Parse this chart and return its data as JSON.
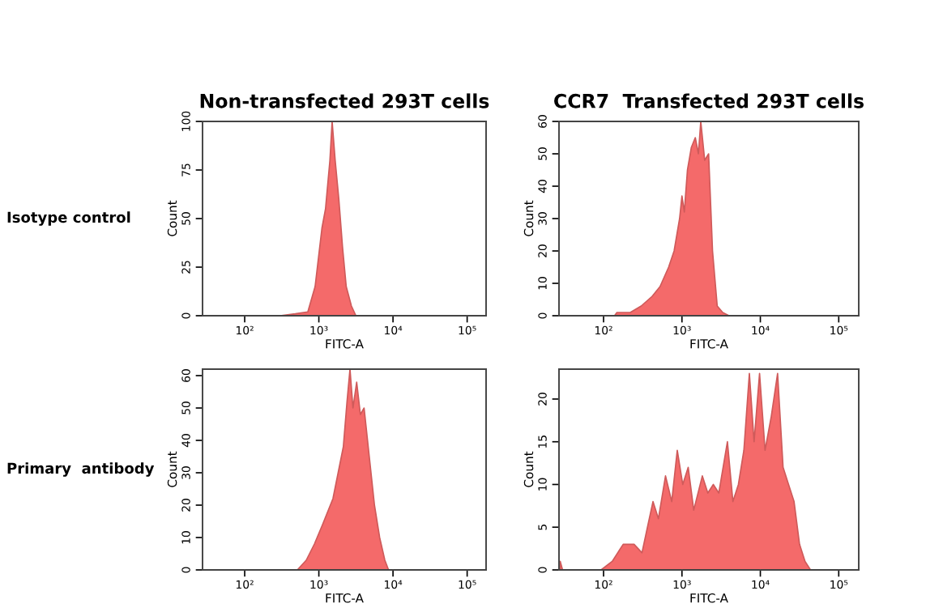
{
  "chart_data": [
    {
      "type": "area",
      "title": "Non-transfected 293T cells",
      "xlabel": "FITC-A",
      "ylabel": "Count",
      "annotations": [
        "Isotype control"
      ],
      "log": "x",
      "xlim": [
        27,
        180000
      ],
      "xticks": [
        {
          "value": 100,
          "label": "10²"
        },
        {
          "value": 1000,
          "label": "10³"
        },
        {
          "value": 10000,
          "label": "10⁴"
        },
        {
          "value": 100000,
          "label": "10⁵"
        }
      ],
      "ylim": [
        0,
        100
      ],
      "yticks": [
        0,
        25,
        50,
        75,
        100
      ],
      "grid": false,
      "legend": false,
      "series": [
        {
          "color": "#f46a6a",
          "x": [
            300,
            480,
            710,
            890,
            1100,
            1230,
            1410,
            1510,
            1660,
            1860,
            2090,
            2340,
            2750,
            3160
          ],
          "values": [
            0,
            1,
            2,
            15,
            45,
            55,
            80,
            100,
            80,
            60,
            35,
            15,
            5,
            0
          ]
        }
      ]
    },
    {
      "type": "area",
      "title": "CCR7  Transfected 293T cells",
      "xlabel": "FITC-A",
      "ylabel": "Count",
      "log": "x",
      "xlim": [
        27,
        180000
      ],
      "xticks": [
        {
          "value": 100,
          "label": "10²"
        },
        {
          "value": 1000,
          "label": "10³"
        },
        {
          "value": 10000,
          "label": "10⁴"
        },
        {
          "value": 100000,
          "label": "10⁵"
        }
      ],
      "ylim": [
        0,
        60
      ],
      "yticks": [
        0,
        10,
        20,
        30,
        40,
        50,
        60
      ],
      "grid": false,
      "legend": false,
      "series": [
        {
          "color": "#f46a6a",
          "x": [
            138,
            148,
            219,
            302,
            417,
            525,
            676,
            794,
            933,
            1000,
            1072,
            1175,
            1318,
            1479,
            1622,
            1738,
            1950,
            2188,
            2455,
            2818,
            3311,
            3981
          ],
          "values": [
            0,
            1,
            1,
            3,
            6,
            9,
            15,
            20,
            30,
            37,
            32,
            45,
            52,
            55,
            50,
            60,
            48,
            50,
            20,
            3,
            1,
            0
          ]
        }
      ]
    },
    {
      "type": "area",
      "xlabel": "FITC-A",
      "ylabel": "Count",
      "annotations": [
        "Primary  antibody"
      ],
      "log": "x",
      "xlim": [
        27,
        180000
      ],
      "xticks": [
        {
          "value": 100,
          "label": "10²"
        },
        {
          "value": 1000,
          "label": "10³"
        },
        {
          "value": 10000,
          "label": "10⁴"
        },
        {
          "value": 100000,
          "label": "10⁵"
        }
      ],
      "ylim": [
        0,
        62
      ],
      "yticks": [
        0,
        10,
        20,
        30,
        40,
        50,
        60
      ],
      "grid": false,
      "legend": false,
      "series": [
        {
          "color": "#f46a6a",
          "x": [
            513,
            676,
            871,
            1122,
            1318,
            1549,
            1820,
            2138,
            2399,
            2630,
            2884,
            3236,
            3631,
            4074,
            4786,
            5623,
            6607,
            7762,
            8710
          ],
          "values": [
            0,
            3,
            8,
            14,
            18,
            22,
            30,
            38,
            52,
            62,
            50,
            58,
            48,
            50,
            35,
            20,
            10,
            3,
            0
          ]
        }
      ]
    },
    {
      "type": "area",
      "xlabel": "FITC-A",
      "ylabel": "Count",
      "log": "x",
      "xlim": [
        27,
        180000
      ],
      "xticks": [
        {
          "value": 100,
          "label": "10²"
        },
        {
          "value": 1000,
          "label": "10³"
        },
        {
          "value": 10000,
          "label": "10⁴"
        },
        {
          "value": 100000,
          "label": "10⁵"
        }
      ],
      "ylim": [
        0,
        23.5
      ],
      "yticks": [
        0,
        5,
        10,
        15,
        20
      ],
      "grid": false,
      "legend": false,
      "series": [
        {
          "color": "#f46a6a",
          "x": [
            28,
            30,
            93,
            129,
            178,
            245,
            309,
            363,
            427,
            501,
            617,
            741,
            871,
            1023,
            1202,
            1413,
            1820,
            2138,
            2512,
            2951,
            3802,
            4467,
            5248,
            6166,
            7244,
            8318,
            9772,
            11482,
            13804,
            16596,
            19498,
            22909,
            26915,
            31623,
            37154,
            43652
          ],
          "values": [
            1,
            0,
            0,
            1,
            3,
            3,
            2,
            5,
            8,
            6,
            11,
            8,
            14,
            10,
            12,
            7,
            11,
            9,
            10,
            9,
            15,
            8,
            10,
            14,
            23,
            15,
            23,
            14,
            18,
            23,
            12,
            10,
            8,
            3,
            1,
            0
          ]
        }
      ]
    }
  ]
}
